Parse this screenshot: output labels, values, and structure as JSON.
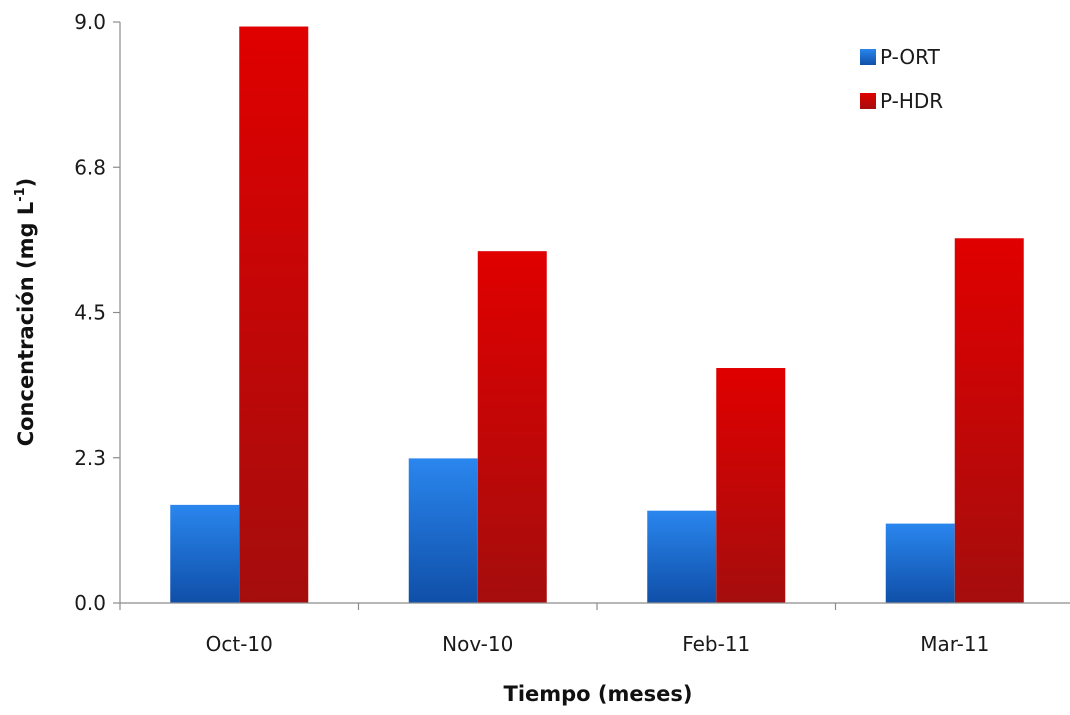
{
  "chart_data": {
    "type": "bar",
    "title": "",
    "xlabel": "Tiempo (meses)",
    "ylabel": {
      "main": "Concentración (mg L",
      "superscript": "-1",
      "close": ")"
    },
    "categories": [
      "Oct-10",
      "Nov-10",
      "Feb-11",
      "Mar-11"
    ],
    "series": [
      {
        "name": "P-ORT",
        "values": [
          1.52,
          2.24,
          1.43,
          1.23
        ],
        "color": "#1f74d6"
      },
      {
        "name": "P-HDR",
        "values": [
          8.93,
          5.45,
          3.64,
          5.65
        ],
        "color": "#d91b1b"
      }
    ],
    "ylim": [
      0,
      9.0
    ],
    "yticks": [
      "0.0",
      "2.3",
      "4.5",
      "6.8",
      "9.0"
    ],
    "ytick_values": [
      0,
      2.25,
      4.5,
      6.75,
      9.0
    ],
    "grid": false,
    "legend_position": "top-right"
  }
}
